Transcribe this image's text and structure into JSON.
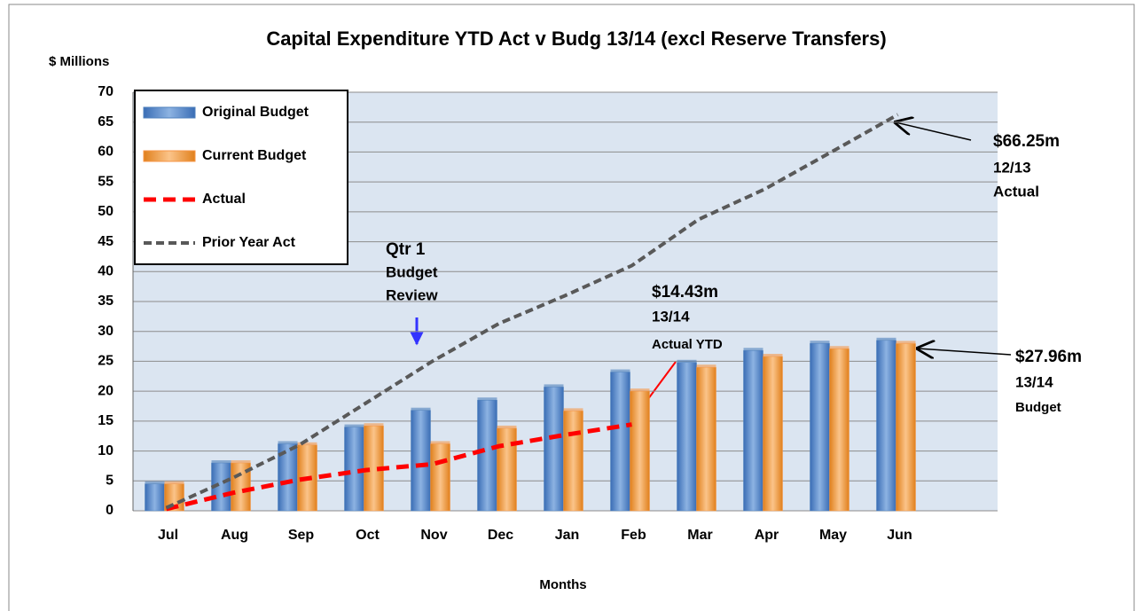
{
  "chart_data": {
    "type": "bar",
    "title": "Capital Expenditure  YTD Act v Budg 13/14 (excl Reserve Transfers)",
    "y_label": "$ Millions",
    "x_label": "Months",
    "categories": [
      "Jul",
      "Aug",
      "Sep",
      "Oct",
      "Nov",
      "Dec",
      "Jan",
      "Feb",
      "Mar",
      "Apr",
      "May",
      "Jun",
      null
    ],
    "series": [
      {
        "name": "Original Budget",
        "type": "bar",
        "color": "#4f81bd",
        "values": [
          4.5,
          8,
          11.2,
          14,
          16.8,
          18.5,
          20.7,
          23.2,
          24.8,
          26.8,
          28,
          28.5,
          null
        ]
      },
      {
        "name": "Current Budget",
        "type": "bar",
        "color": "#f79646",
        "values": [
          4.5,
          8,
          11,
          14.2,
          11.2,
          13.8,
          16.7,
          20,
          24,
          25.8,
          27.1,
          27.96,
          null
        ]
      },
      {
        "name": "Actual",
        "type": "line",
        "color": "#ff0000",
        "values": [
          0.3,
          3,
          5.2,
          6.8,
          7.8,
          10.8,
          12.7,
          14.43,
          null,
          null,
          null,
          null,
          null
        ]
      },
      {
        "name": "Prior Year Act",
        "type": "line",
        "color": "#595959",
        "values": [
          0.5,
          5.5,
          11,
          18,
          25,
          31.3,
          36,
          41,
          48.7,
          53.8,
          60,
          66.25,
          null
        ]
      }
    ],
    "ylim": [
      0,
      70
    ],
    "yticks": [
      0,
      5,
      10,
      15,
      20,
      25,
      30,
      35,
      40,
      45,
      50,
      55,
      60,
      65,
      70
    ],
    "grid": true,
    "legend": "top-left",
    "annotations": [
      {
        "lines": [
          "$66.25m",
          "12/13",
          "Actual"
        ]
      },
      {
        "lines": [
          "$27.96m",
          "13/14",
          "Budget"
        ]
      },
      {
        "lines": [
          "$14.43m",
          "13/14",
          "Actual YTD"
        ]
      },
      {
        "lines": [
          "Qtr 1",
          "Budget",
          "Review"
        ]
      }
    ]
  }
}
